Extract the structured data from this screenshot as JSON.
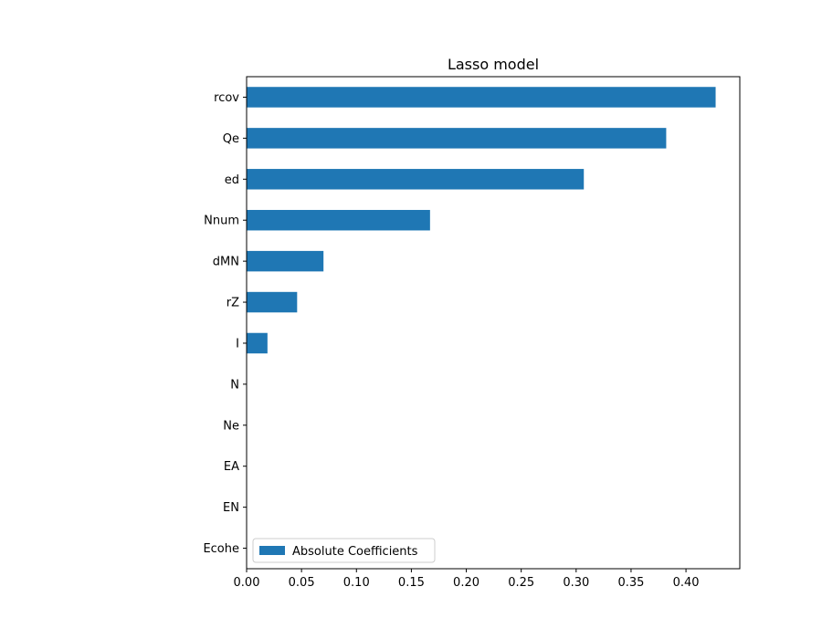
{
  "chart_data": {
    "type": "bar",
    "orientation": "horizontal",
    "title": "Lasso model",
    "xlabel": "",
    "ylabel": "",
    "categories": [
      "rcov",
      "Qe",
      "ed",
      "Nnum",
      "dMN",
      "rZ",
      "I",
      "N",
      "Ne",
      "EA",
      "EN",
      "Ecohe"
    ],
    "series": [
      {
        "name": "Absolute Coefficients",
        "color": "#1f77b4",
        "values": [
          0.427,
          0.382,
          0.307,
          0.167,
          0.07,
          0.046,
          0.019,
          0.0,
          0.0,
          0.0,
          0.0,
          0.0
        ]
      }
    ],
    "xlim": [
      0.0,
      0.449
    ],
    "xticks": [
      "0.00",
      "0.05",
      "0.10",
      "0.15",
      "0.20",
      "0.25",
      "0.30",
      "0.35",
      "0.40"
    ],
    "grid": false,
    "legend_position": "lower-left"
  }
}
